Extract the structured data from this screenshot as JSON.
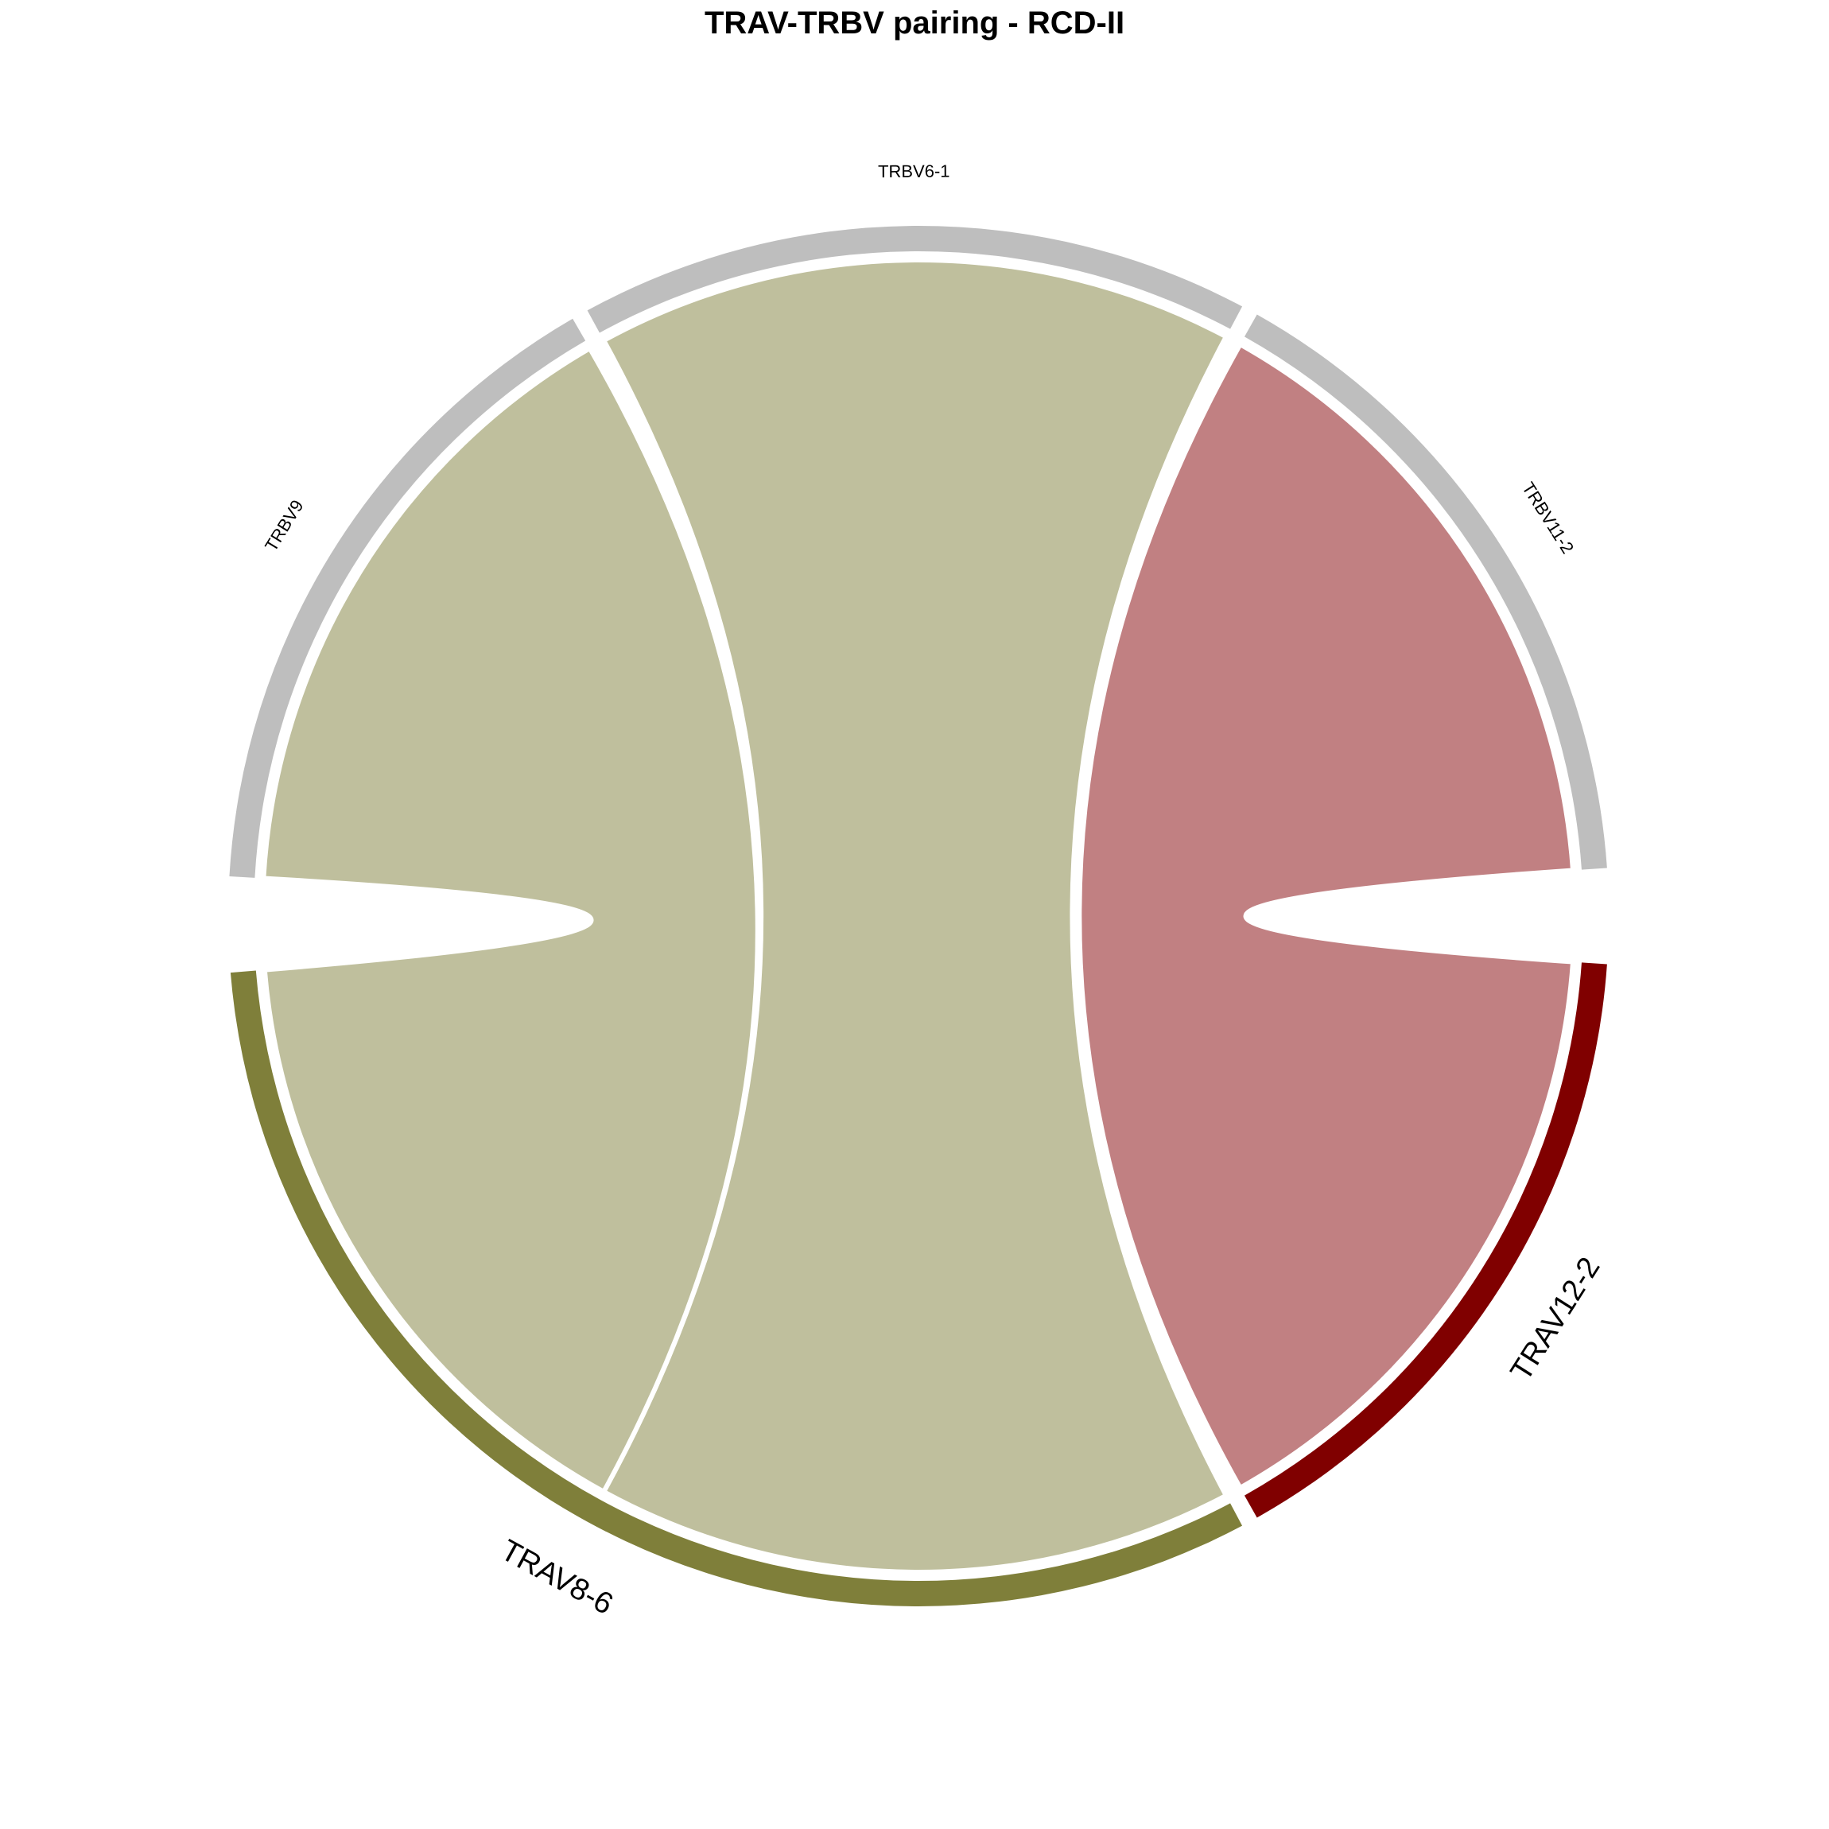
{
  "title": "TRAV-TRBV pairing - RCD-II",
  "chart_data": {
    "type": "chord",
    "title": "TRAV-TRBV pairing - RCD-II",
    "sectors": [
      {
        "name": "TRBV11-2",
        "group": "TRBV",
        "color": "#BEBEBE"
      },
      {
        "name": "TRBV6-1",
        "group": "TRBV",
        "color": "#BEBEBE"
      },
      {
        "name": "TRBV9",
        "group": "TRBV",
        "color": "#BEBEBE"
      },
      {
        "name": "TRAV8-6",
        "group": "TRAV",
        "color": "#7F7F3A"
      },
      {
        "name": "TRAV12-2",
        "group": "TRAV",
        "color": "#800000"
      }
    ],
    "links": [
      {
        "from": "TRAV12-2",
        "to": "TRBV11-2",
        "value": 1,
        "color": "#C18082"
      },
      {
        "from": "TRAV8-6",
        "to": "TRBV6-1",
        "value": 1,
        "color": "#BFBF9D"
      },
      {
        "from": "TRAV8-6",
        "to": "TRBV9",
        "value": 1,
        "color": "#BFBF9D"
      }
    ]
  }
}
